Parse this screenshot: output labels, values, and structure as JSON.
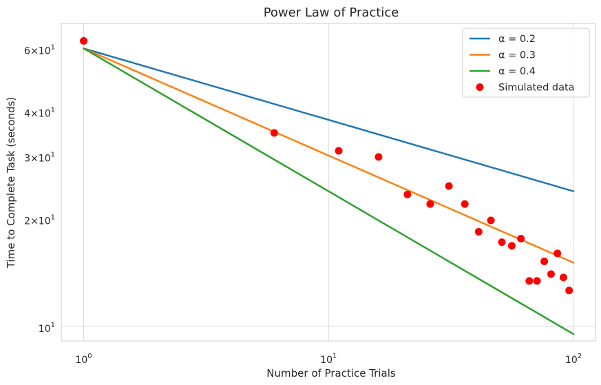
{
  "chart_data": {
    "type": "line",
    "title": "Power Law of Practice",
    "xlabel": "Number of Practice Trials",
    "ylabel": "Time to Complete Task (seconds)",
    "xscale": "log",
    "yscale": "log",
    "xlim": [
      0.81,
      123
    ],
    "ylim": [
      9.1,
      70.5
    ],
    "grid": true,
    "legend_position": "top-right",
    "x_ticks": [
      {
        "value": 1,
        "base": "10",
        "exp": "0"
      },
      {
        "value": 10,
        "base": "10",
        "exp": "1"
      },
      {
        "value": 100,
        "base": "10",
        "exp": "2"
      }
    ],
    "y_ticks": [
      {
        "value": 10,
        "prefix": "",
        "base": "10",
        "exp": "1"
      },
      {
        "value": 20,
        "prefix": "2×",
        "base": "10",
        "exp": "1"
      },
      {
        "value": 30,
        "prefix": "3×",
        "base": "10",
        "exp": "1"
      },
      {
        "value": 40,
        "prefix": "4×",
        "base": "10",
        "exp": "1"
      },
      {
        "value": 60,
        "prefix": "6×",
        "base": "10",
        "exp": "1"
      }
    ],
    "y_major_grid": [
      10
    ],
    "series": [
      {
        "name": "α = 0.2",
        "kind": "line",
        "color": "#1f77b4",
        "a": 60,
        "alpha": 0.2,
        "x_range": [
          1,
          100
        ]
      },
      {
        "name": "α = 0.3",
        "kind": "line",
        "color": "#ff7f0e",
        "a": 60,
        "alpha": 0.3,
        "x_range": [
          1,
          100
        ]
      },
      {
        "name": "α = 0.4",
        "kind": "line",
        "color": "#2ca02c",
        "a": 60,
        "alpha": 0.4,
        "x_range": [
          1,
          100
        ]
      },
      {
        "name": "Simulated data",
        "kind": "scatter",
        "color": "#ff0000",
        "points": [
          [
            1,
            63.0
          ],
          [
            6,
            34.8
          ],
          [
            11,
            31.0
          ],
          [
            16,
            29.8
          ],
          [
            21,
            23.4
          ],
          [
            26,
            22.0
          ],
          [
            31,
            24.7
          ],
          [
            36,
            22.0
          ],
          [
            41,
            18.4
          ],
          [
            46,
            19.8
          ],
          [
            51,
            17.2
          ],
          [
            56,
            16.8
          ],
          [
            61,
            17.6
          ],
          [
            66,
            13.4
          ],
          [
            71,
            13.4
          ],
          [
            76,
            15.2
          ],
          [
            81,
            14.0
          ],
          [
            86,
            16.0
          ],
          [
            91,
            13.7
          ],
          [
            96,
            12.6
          ]
        ]
      }
    ]
  }
}
